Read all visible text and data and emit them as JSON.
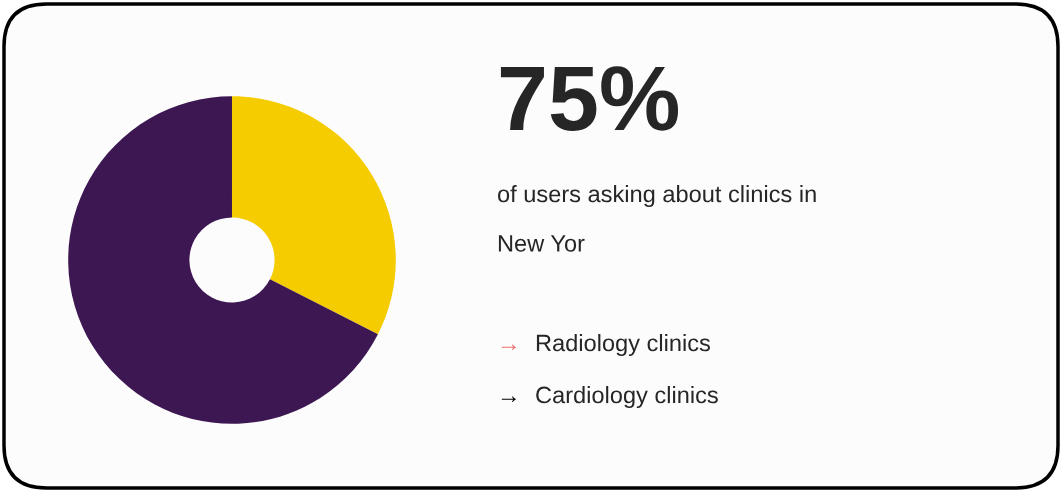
{
  "chart_data": {
    "type": "donut",
    "title": "75%",
    "subtitle": "of users asking about clinics in\nNew Yor",
    "categories": [
      null,
      null
    ],
    "values": [
      32.5,
      67.5
    ],
    "colors": [
      "#f5cc00",
      "#3d1752"
    ],
    "annotations": [
      "→ Radiology clinics",
      "→ Cardiology clinics"
    ]
  }
}
